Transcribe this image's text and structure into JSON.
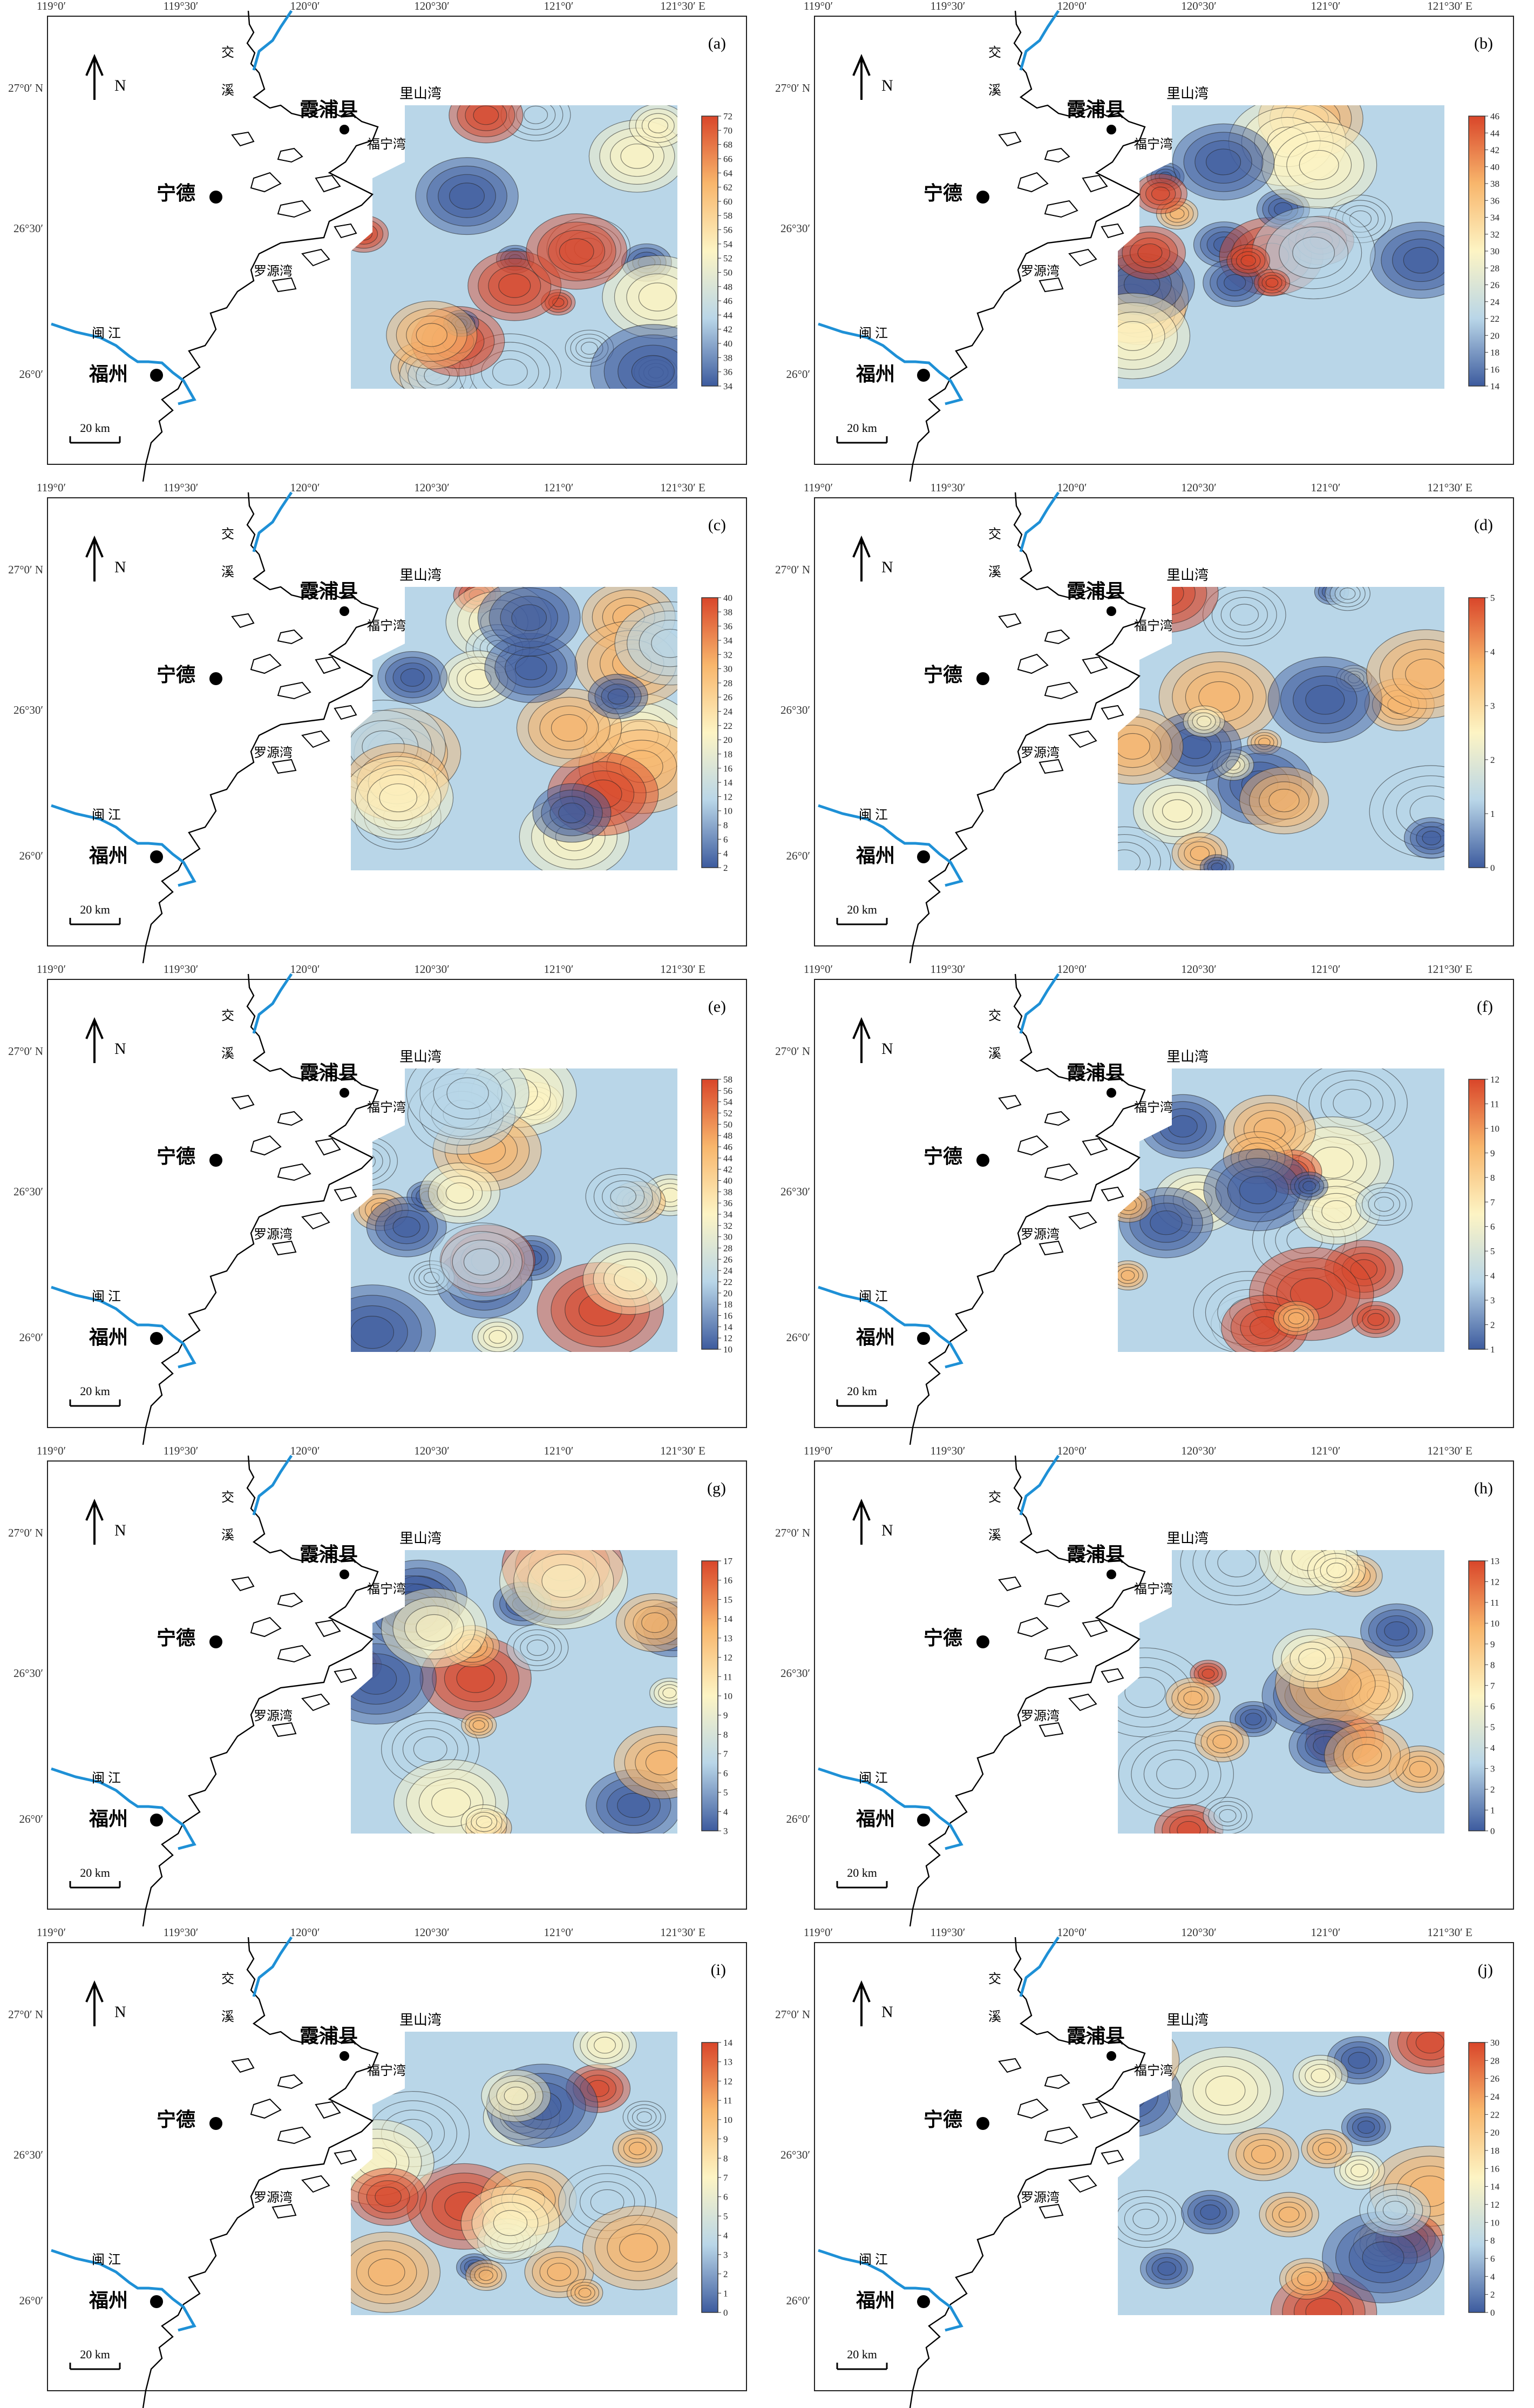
{
  "figure": {
    "top_axis_labels": [
      "119°0′",
      "119°30′",
      "120°0′",
      "120°30′",
      "121°0′",
      "121°30′ E"
    ],
    "left_axis_labels": [
      "27°0′ N",
      "26°30′",
      "26°0′"
    ],
    "north_label": "N",
    "scale_bar_label": "20 km",
    "place_names": {
      "xiapu": "霞浦县",
      "ningde": "宁德",
      "fuzhou": "福州",
      "lishanwan": "里山湾",
      "funingwan": "福宁湾",
      "luoyuanwan": "罗源湾",
      "minjiang": "闽  江",
      "jiaoxi_1": "交",
      "jiaoxi_2": "溪"
    },
    "colors": {
      "low": "#3d5b9e",
      "mid_low": "#b9d6e8",
      "mid": "#fdf4c4",
      "mid_high": "#f8b66c",
      "high": "#d9462a",
      "river": "#1e90d6",
      "coast": "#000000"
    }
  },
  "panels": [
    {
      "letter": "(a)",
      "ticks": [
        "72",
        "70",
        "68",
        "66",
        "64",
        "62",
        "60",
        "58",
        "56",
        "54",
        "52",
        "50",
        "48",
        "46",
        "44",
        "42",
        "40",
        "38",
        "36",
        "34"
      ]
    },
    {
      "letter": "(b)",
      "ticks": [
        "46",
        "44",
        "42",
        "40",
        "38",
        "36",
        "34",
        "32",
        "30",
        "28",
        "26",
        "24",
        "22",
        "20",
        "18",
        "16",
        "14"
      ]
    },
    {
      "letter": "(c)",
      "ticks": [
        "40",
        "38",
        "36",
        "34",
        "32",
        "30",
        "28",
        "26",
        "24",
        "22",
        "20",
        "18",
        "16",
        "14",
        "12",
        "10",
        "8",
        "6",
        "4",
        "2"
      ]
    },
    {
      "letter": "(d)",
      "ticks": [
        "5",
        "4",
        "3",
        "2",
        "1",
        "0"
      ]
    },
    {
      "letter": "(e)",
      "ticks": [
        "58",
        "56",
        "54",
        "52",
        "50",
        "48",
        "46",
        "44",
        "42",
        "40",
        "38",
        "36",
        "34",
        "32",
        "30",
        "28",
        "26",
        "24",
        "22",
        "20",
        "18",
        "16",
        "14",
        "12",
        "10"
      ]
    },
    {
      "letter": "(f)",
      "ticks": [
        "12",
        "11",
        "10",
        "9",
        "8",
        "7",
        "6",
        "5",
        "4",
        "3",
        "2",
        "1"
      ]
    },
    {
      "letter": "(g)",
      "ticks": [
        "17",
        "16",
        "15",
        "14",
        "13",
        "12",
        "11",
        "10",
        "9",
        "8",
        "7",
        "6",
        "5",
        "4",
        "3"
      ]
    },
    {
      "letter": "(h)",
      "ticks": [
        "13",
        "12",
        "11",
        "10",
        "9",
        "8",
        "7",
        "6",
        "5",
        "4",
        "3",
        "2",
        "1",
        "0"
      ]
    },
    {
      "letter": "(i)",
      "ticks": [
        "14",
        "13",
        "12",
        "11",
        "10",
        "9",
        "8",
        "7",
        "6",
        "5",
        "4",
        "3",
        "2",
        "1",
        "0"
      ]
    },
    {
      "letter": "(j)",
      "ticks": [
        "30",
        "28",
        "26",
        "24",
        "22",
        "20",
        "18",
        "16",
        "14",
        "12",
        "10",
        "8",
        "6",
        "4",
        "2",
        "0"
      ]
    }
  ]
}
